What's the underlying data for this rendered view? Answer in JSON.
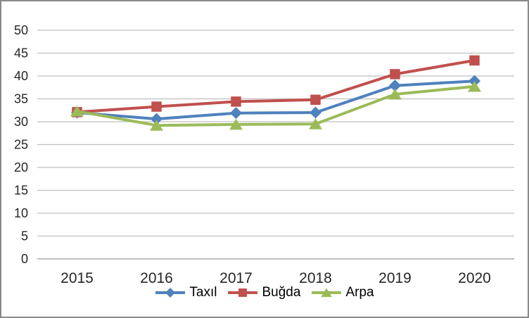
{
  "chart_data": {
    "type": "line",
    "title": "",
    "xlabel": "",
    "ylabel": "",
    "categories": [
      "2015",
      "2016",
      "2017",
      "2018",
      "2019",
      "2020"
    ],
    "series": [
      {
        "name": "Taxıl",
        "marker": "diamond",
        "color": "#4F81BD",
        "values": [
          32.0,
          30.6,
          31.9,
          32.0,
          37.9,
          38.9
        ]
      },
      {
        "name": "Buğda",
        "marker": "square",
        "color": "#C0504D",
        "values": [
          32.1,
          33.3,
          34.4,
          34.8,
          40.4,
          43.4
        ]
      },
      {
        "name": "Arpa",
        "marker": "triangle",
        "color": "#9BBB59",
        "values": [
          32.3,
          29.2,
          29.4,
          29.5,
          36.0,
          37.7
        ]
      }
    ],
    "ylim": [
      0,
      50
    ],
    "ytick_step": 5,
    "grid": "horizontal",
    "legend_position": "bottom",
    "colors": {
      "grid_line": "#bfbfbf",
      "axis_line": "#9b9b9b",
      "tick_text": "#262626",
      "frame_border": "#898989",
      "background": "#ffffff"
    }
  }
}
